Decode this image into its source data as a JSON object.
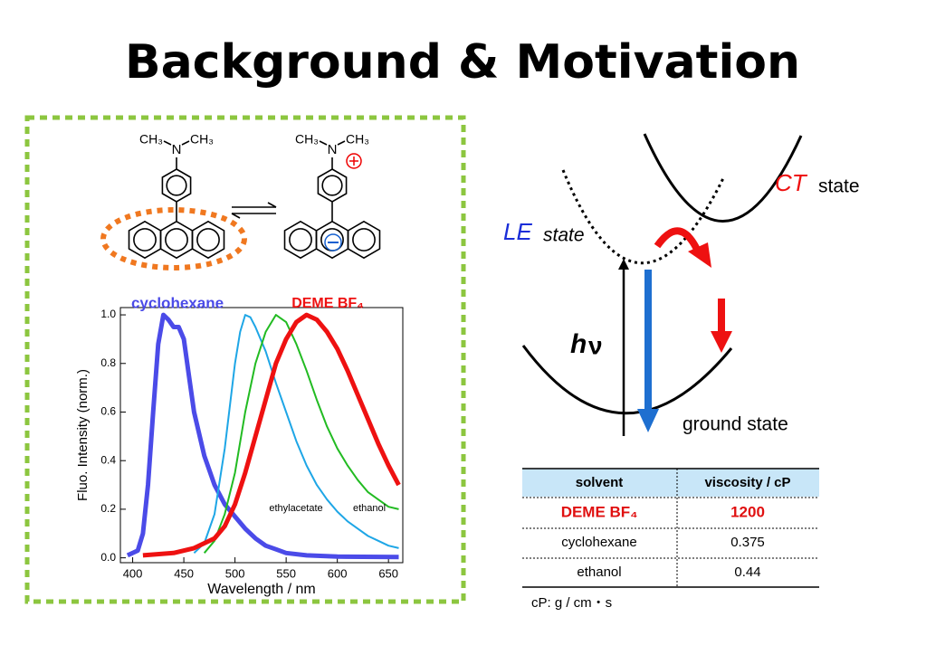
{
  "title": "Background & Motivation",
  "molecule": {
    "methyl": "CH₃",
    "nitrogen": "N"
  },
  "spectrum": {
    "type": "line",
    "xlabel": "Wavelength / nm",
    "ylabel": "Fluo. Intensity (norm.)",
    "xlim": [
      388,
      664
    ],
    "ylim": [
      -0.02,
      1.03
    ],
    "xticks": [
      400,
      450,
      500,
      550,
      600,
      650
    ],
    "yticks": [
      {
        "value": 0,
        "label": "0.0"
      },
      0.2,
      0.4,
      0.6,
      0.8,
      {
        "value": 1,
        "label": "1.0"
      }
    ],
    "series": [
      {
        "name": "cyclohexane",
        "color": "#4b4be8",
        "width": 5,
        "x": [
          395,
          405,
          410,
          415,
          420,
          425,
          430,
          435,
          440,
          445,
          450,
          455,
          460,
          470,
          480,
          490,
          500,
          510,
          520,
          530,
          540,
          550,
          570,
          600,
          660
        ],
        "values": [
          0.01,
          0.03,
          0.1,
          0.3,
          0.6,
          0.88,
          1.0,
          0.98,
          0.95,
          0.95,
          0.9,
          0.75,
          0.6,
          0.42,
          0.3,
          0.22,
          0.17,
          0.12,
          0.08,
          0.05,
          0.035,
          0.02,
          0.01,
          0.005,
          0.003
        ]
      },
      {
        "name": "ethylacetate",
        "color": "#1ea6e6",
        "width": 2,
        "x": [
          460,
          470,
          480,
          490,
          500,
          505,
          510,
          515,
          520,
          530,
          540,
          550,
          560,
          570,
          580,
          590,
          600,
          610,
          620,
          630,
          640,
          650,
          660
        ],
        "values": [
          0.02,
          0.06,
          0.18,
          0.45,
          0.8,
          0.93,
          1.0,
          0.99,
          0.95,
          0.85,
          0.72,
          0.6,
          0.48,
          0.38,
          0.3,
          0.24,
          0.19,
          0.15,
          0.12,
          0.09,
          0.07,
          0.05,
          0.04
        ]
      },
      {
        "name": "ethanol",
        "color": "#22bb22",
        "width": 2,
        "x": [
          470,
          480,
          490,
          500,
          510,
          520,
          530,
          540,
          550,
          560,
          570,
          580,
          590,
          600,
          610,
          620,
          630,
          640,
          650,
          660
        ],
        "values": [
          0.02,
          0.07,
          0.18,
          0.35,
          0.6,
          0.8,
          0.93,
          1.0,
          0.97,
          0.88,
          0.77,
          0.65,
          0.54,
          0.45,
          0.38,
          0.32,
          0.27,
          0.24,
          0.21,
          0.2
        ]
      },
      {
        "name": "DEME BF₄",
        "color": "#ee1111",
        "width": 5,
        "x": [
          410,
          440,
          460,
          480,
          490,
          500,
          510,
          520,
          530,
          540,
          550,
          560,
          570,
          580,
          590,
          600,
          610,
          620,
          630,
          640,
          650,
          660
        ],
        "values": [
          0.01,
          0.02,
          0.04,
          0.08,
          0.13,
          0.22,
          0.35,
          0.5,
          0.65,
          0.8,
          0.9,
          0.97,
          1.0,
          0.98,
          0.93,
          0.86,
          0.77,
          0.67,
          0.57,
          0.47,
          0.38,
          0.3
        ]
      }
    ]
  },
  "diagram": {
    "ct": "CT",
    "le": "LE",
    "state": "state",
    "h": "h",
    "nu": "ν",
    "ground": "ground state"
  },
  "table": {
    "header": [
      "solvent",
      "viscosity / cP"
    ],
    "rows": [
      [
        "DEME BF₄",
        "1200"
      ],
      [
        "cyclohexane",
        "0.375"
      ],
      [
        "ethanol",
        "0.44"
      ]
    ],
    "note": "cP:  g / cm・s"
  }
}
